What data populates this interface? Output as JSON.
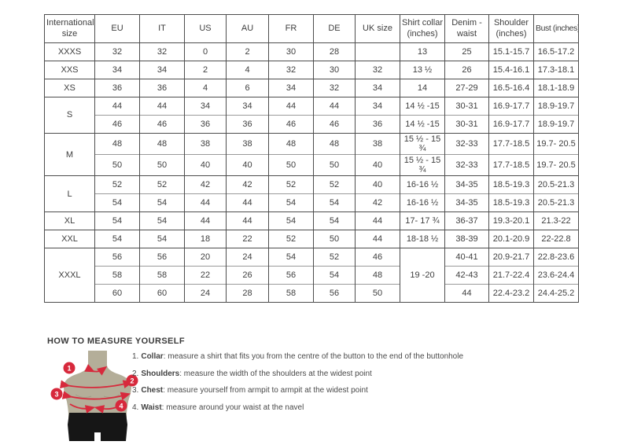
{
  "colors": {
    "accent_red": "#d7293c",
    "mannequin": "#b4ae99",
    "mannequin_shade": "#a19c86",
    "shorts": "#161616",
    "border_dark": "#4d4d4d",
    "border_light": "#9a9a9a",
    "text": "#3e3e3e"
  },
  "size_chart": {
    "headers": [
      "International size",
      "EU",
      "IT",
      "US",
      "AU",
      "FR",
      "DE",
      "UK size",
      "Shirt collar (inches)",
      "Denim - waist",
      "Shoulder (inches)",
      "Bust (inches)"
    ],
    "groups": [
      {
        "size": "XXXS",
        "rows": [
          [
            "32",
            "32",
            "0",
            "2",
            "30",
            "28",
            "",
            "13",
            "25",
            "15.1-15.7",
            "16.5-17.2"
          ]
        ]
      },
      {
        "size": "XXS",
        "rows": [
          [
            "34",
            "34",
            "2",
            "4",
            "32",
            "30",
            "32",
            "13 ½",
            "26",
            "15.4-16.1",
            "17.3-18.1"
          ]
        ]
      },
      {
        "size": "XS",
        "rows": [
          [
            "36",
            "36",
            "4",
            "6",
            "34",
            "32",
            "34",
            "14",
            "27-29",
            "16.5-16.4",
            "18.1-18.9"
          ]
        ]
      },
      {
        "size": "S",
        "rows": [
          [
            "44",
            "44",
            "34",
            "34",
            "44",
            "44",
            "34",
            "14 ½ -15",
            "30-31",
            "16.9-17.7",
            "18.9-19.7"
          ],
          [
            "46",
            "46",
            "36",
            "36",
            "46",
            "46",
            "36",
            "14 ½ -15",
            "30-31",
            "16.9-17.7",
            "18.9-19.7"
          ]
        ]
      },
      {
        "size": "M",
        "rows": [
          [
            "48",
            "48",
            "38",
            "38",
            "48",
            "48",
            "38",
            "15 ½ - 15 ¾",
            "32-33",
            "17.7-18.5",
            "19.7- 20.5"
          ],
          [
            "50",
            "50",
            "40",
            "40",
            "50",
            "50",
            "40",
            "15 ½ - 15 ¾",
            "32-33",
            "17.7-18.5",
            "19.7- 20.5"
          ]
        ]
      },
      {
        "size": "L",
        "rows": [
          [
            "52",
            "52",
            "42",
            "42",
            "52",
            "52",
            "40",
            "16-16 ½",
            "34-35",
            "18.5-19.3",
            "20.5-21.3"
          ],
          [
            "54",
            "54",
            "44",
            "44",
            "54",
            "54",
            "42",
            "16-16 ½",
            "34-35",
            "18.5-19.3",
            "20.5-21.3"
          ]
        ]
      },
      {
        "size": "XL",
        "rows": [
          [
            "54",
            "54",
            "44",
            "44",
            "54",
            "54",
            "44",
            "17- 17 ¾",
            "36-37",
            "19.3-20.1",
            "21.3-22"
          ]
        ]
      },
      {
        "size": "XXL",
        "rows": [
          [
            "54",
            "54",
            "18",
            "22",
            "52",
            "50",
            "44",
            "18-18 ½",
            "38-39",
            "20.1-20.9",
            "22-22.8"
          ]
        ]
      },
      {
        "size": "XXXL",
        "merged_collar": "19 -20",
        "rows": [
          [
            "56",
            "56",
            "20",
            "24",
            "54",
            "52",
            "46",
            null,
            "40-41",
            "20.9-21.7",
            "22.8-23.6"
          ],
          [
            "58",
            "58",
            "22",
            "26",
            "56",
            "54",
            "48",
            null,
            "42-43",
            "21.7-22.4",
            "23.6-24.4"
          ],
          [
            "60",
            "60",
            "24",
            "28",
            "58",
            "56",
            "50",
            null,
            "44",
            "22.4-23.2",
            "24.4-25.2"
          ]
        ]
      }
    ]
  },
  "measure": {
    "title": "HOW TO MEASURE YOURSELF",
    "steps": [
      {
        "num": "1.",
        "label": "Collar",
        "text": ": measure a shirt that fits you from the centre of the button to the end of the buttonhole"
      },
      {
        "num": "2.",
        "label": "Shoulders",
        "text": ": measure the width of the shoulders at the widest point"
      },
      {
        "num": "3.",
        "label": "Chest",
        "text": ": measure yourself from armpit to armpit at the widest point"
      },
      {
        "num": "4.",
        "label": "Waist",
        "text": ": measure around your waist at the navel"
      }
    ],
    "diagram_numbers": [
      "1",
      "2",
      "3",
      "4"
    ]
  }
}
